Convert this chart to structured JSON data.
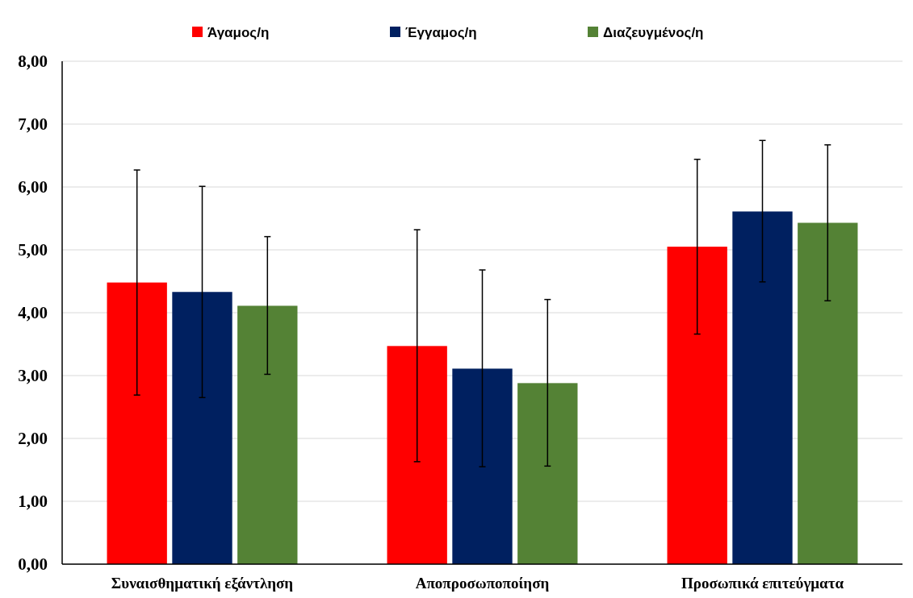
{
  "chart_data": {
    "type": "bar",
    "categories": [
      "Συναισθηματική εξάντληση",
      "Αποπροσωποποίηση",
      "Προσωπικά επιτεύγματα"
    ],
    "series": [
      {
        "name": "Άγαμος/η",
        "color": "#ff0000",
        "values": [
          4.48,
          3.47,
          5.05
        ],
        "errors": [
          [
            2.69,
            6.27
          ],
          [
            1.63,
            5.32
          ],
          [
            3.66,
            6.44
          ]
        ]
      },
      {
        "name": "Έγγαμος/η",
        "color": "#002060",
        "values": [
          4.33,
          3.11,
          5.61
        ],
        "errors": [
          [
            2.65,
            6.01
          ],
          [
            1.55,
            4.68
          ],
          [
            4.49,
            6.74
          ]
        ]
      },
      {
        "name": "Διαζευγμένος/η",
        "color": "#548235",
        "values": [
          4.11,
          2.88,
          5.43
        ],
        "errors": [
          [
            3.02,
            5.21
          ],
          [
            1.56,
            4.21
          ],
          [
            4.19,
            6.67
          ]
        ]
      }
    ],
    "ylim": [
      0,
      8
    ],
    "yticks": [
      {
        "value": 0,
        "label": "0,00"
      },
      {
        "value": 1,
        "label": "1,00"
      },
      {
        "value": 2,
        "label": "2,00"
      },
      {
        "value": 3,
        "label": "3,00"
      },
      {
        "value": 4,
        "label": "4,00"
      },
      {
        "value": 5,
        "label": "5,00"
      },
      {
        "value": 6,
        "label": "6,00"
      },
      {
        "value": 7,
        "label": "7,00"
      },
      {
        "value": 8,
        "label": "8,00"
      }
    ],
    "grid": "y",
    "legend": "top"
  }
}
